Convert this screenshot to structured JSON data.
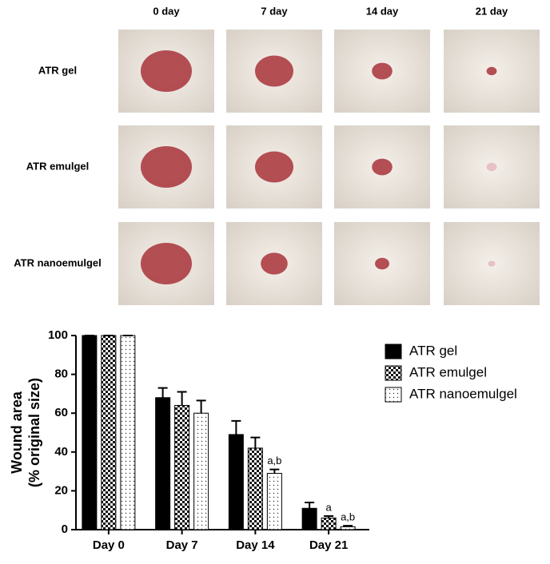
{
  "panel": {
    "columns": [
      "0 day",
      "7 day",
      "14 day",
      "21 day"
    ],
    "rows": [
      "ATR gel",
      "ATR emulgel",
      "ATR nanoemulgel"
    ]
  },
  "chart_data": {
    "type": "bar",
    "ylabel": [
      "Wound area",
      "(% original size)"
    ],
    "categories": [
      "Day 0",
      "Day 7",
      "Day 14",
      "Day 21"
    ],
    "series": [
      {
        "name": "ATR gel",
        "color": "#000000",
        "pattern": "solid",
        "values": [
          100,
          68,
          49,
          11
        ],
        "errors": [
          0,
          5,
          7,
          3
        ],
        "annotations": [
          null,
          null,
          null,
          null
        ]
      },
      {
        "name": "ATR emulgel",
        "color": "#000000",
        "pattern": "checker",
        "values": [
          100,
          64,
          42,
          6
        ],
        "errors": [
          0,
          7,
          5.5,
          1
        ],
        "annotations": [
          null,
          null,
          null,
          "a"
        ]
      },
      {
        "name": "ATR nanoemulgel",
        "color": "#000000",
        "pattern": "dots",
        "values": [
          100,
          60,
          29,
          1.5
        ],
        "errors": [
          0,
          6.5,
          2,
          0.5
        ],
        "annotations": [
          null,
          null,
          "a,b",
          "a,b"
        ]
      }
    ],
    "ylim": [
      0,
      100
    ],
    "yticks": [
      0,
      20,
      40,
      60,
      80,
      100
    ],
    "legend": "right"
  }
}
